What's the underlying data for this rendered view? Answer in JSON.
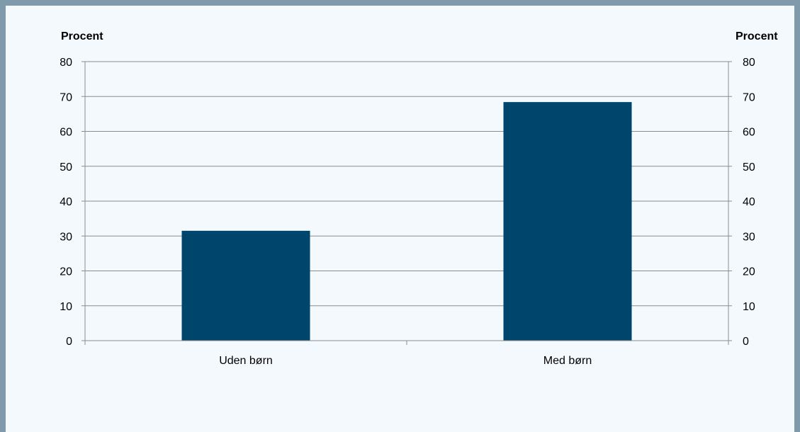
{
  "chart_data": {
    "type": "bar",
    "categories": [
      "Uden børn",
      "Med børn"
    ],
    "series": [
      {
        "values": [
          31.5,
          68.4
        ],
        "color": "#00456b"
      }
    ],
    "ylabel_left": "Procent",
    "ylabel_right": "Procent",
    "ylim": [
      0,
      80
    ],
    "yticks": [
      0,
      10,
      20,
      30,
      40,
      50,
      60,
      70,
      80
    ],
    "grid": true,
    "dual_y_axis": true,
    "legend": "none"
  },
  "colors": {
    "frame": "#7f9bab",
    "background": "#f4f9fd",
    "bar": "#00456b",
    "gridline": "#8c8c8c"
  }
}
